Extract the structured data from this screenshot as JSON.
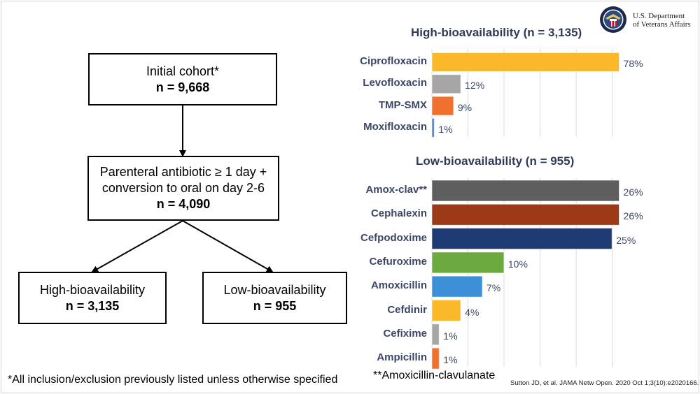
{
  "logo": {
    "line1": "U.S. Department",
    "line2": "of Veterans Affairs"
  },
  "flowchart": {
    "initial": {
      "label": "Initial cohort*",
      "n": "n = 9,668"
    },
    "parenteral": {
      "line1": "Parenteral antibiotic ≥ 1 day +",
      "line2": "conversion to oral on day 2-6",
      "n": "n = 4,090"
    },
    "high": {
      "label": "High-bioavailability",
      "n": "n = 3,135"
    },
    "low": {
      "label": "Low-bioavailability",
      "n": "n = 955"
    }
  },
  "chart_data": [
    {
      "type": "bar",
      "orientation": "horizontal",
      "title": "High-bioavailability (n = 3,135)",
      "categories": [
        "Ciprofloxacin",
        "Levofloxacin",
        "TMP-SMX",
        "Moxifloxacin"
      ],
      "values": [
        78,
        12,
        9,
        1
      ],
      "value_labels": [
        "78%",
        "12%",
        "9%",
        "1%"
      ],
      "colors": [
        "#fbb829",
        "#a6a6a6",
        "#f0702d",
        "#5b86c7"
      ],
      "xlim": [
        0,
        100
      ],
      "grid": true
    },
    {
      "type": "bar",
      "orientation": "horizontal",
      "title": "Low-bioavailability (n = 955)",
      "categories": [
        "Amox-clav**",
        "Cephalexin",
        "Cefpodoxime",
        "Cefuroxime",
        "Amoxicillin",
        "Cefdinir",
        "Cefixime",
        "Ampicillin"
      ],
      "values": [
        26,
        26,
        25,
        10,
        7,
        4,
        1,
        1
      ],
      "value_labels": [
        "26%",
        "26%",
        "25%",
        "10%",
        "7%",
        "4%",
        "1%",
        "1%"
      ],
      "colors": [
        "#5e5e5e",
        "#9c3a17",
        "#1f3b73",
        "#6aaa3f",
        "#3d8fd8",
        "#fbb829",
        "#a6a6a6",
        "#f0702d"
      ],
      "xlim": [
        0,
        30
      ],
      "grid": true
    }
  ],
  "footnotes": {
    "left": "*All inclusion/exclusion previously listed unless otherwise specified",
    "mid": "**Amoxicillin-clavulanate",
    "citation": "Sutton JD, et al. JAMA Netw Open. 2020 Oct 1;3(10):e2020166."
  }
}
